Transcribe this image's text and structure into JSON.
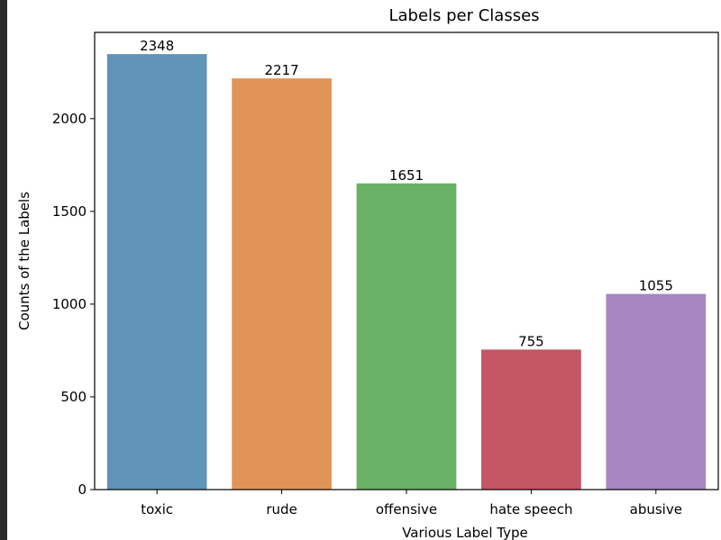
{
  "chart_data": {
    "type": "bar",
    "title": "Labels per Classes",
    "xlabel": "Various Label Type",
    "ylabel": "Counts of the Labels",
    "categories": [
      "toxic",
      "rude",
      "offensive",
      "hate speech",
      "abusive"
    ],
    "values": [
      2348,
      2217,
      1651,
      755,
      1055
    ],
    "data_labels": [
      "2348",
      "2217",
      "1651",
      "755",
      "1055"
    ],
    "colors": [
      "#6094b9",
      "#e19458",
      "#68b165",
      "#c45562",
      "#a786c1"
    ],
    "ylim": [
      0,
      2465
    ],
    "yticks": [
      0,
      500,
      1000,
      1500,
      2000
    ],
    "ytick_labels": [
      "0",
      "500",
      "1000",
      "1500",
      "2000"
    ],
    "grid": false,
    "legend": "none"
  }
}
